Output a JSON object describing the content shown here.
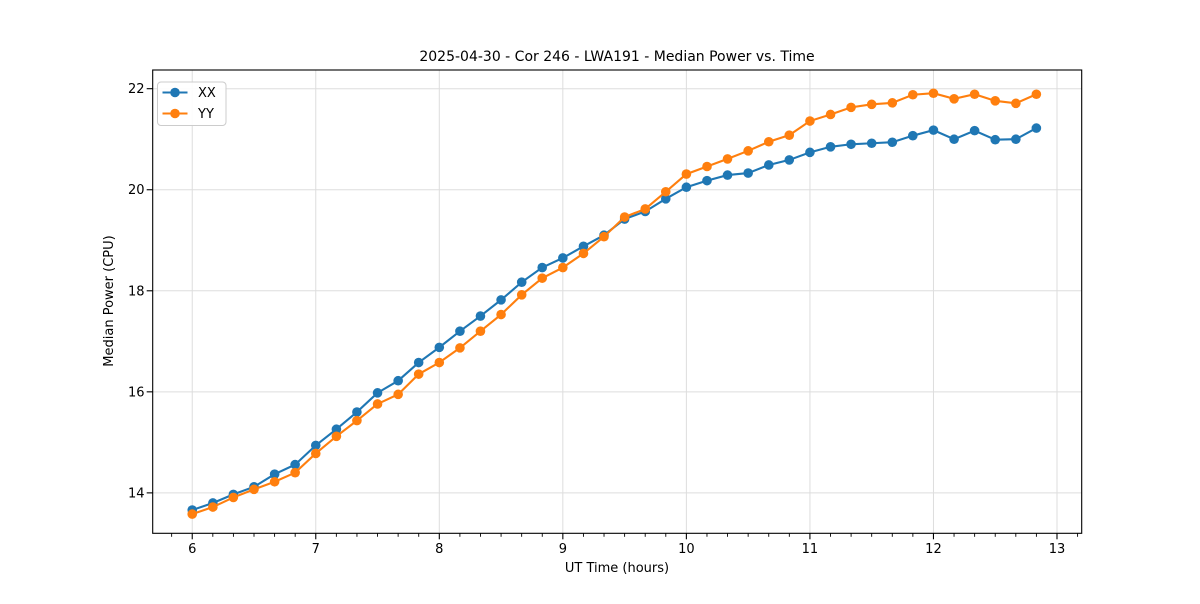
{
  "chart_data": {
    "type": "line",
    "title": "2025-04-30 - Cor 246 - LWA191 - Median Power vs. Time",
    "xlabel": "UT Time (hours)",
    "ylabel": "Median Power (CPU)",
    "xlim": [
      5.68,
      13.2
    ],
    "ylim": [
      13.2,
      22.37
    ],
    "x_ticks": [
      6,
      7,
      8,
      9,
      10,
      11,
      12,
      13
    ],
    "y_ticks": [
      14,
      16,
      18,
      20,
      22
    ],
    "x_minor_tick_step_hours": 0.16667,
    "grid": "major-both",
    "legend_position": "upper-left",
    "x": [
      6.0,
      6.167,
      6.333,
      6.5,
      6.667,
      6.833,
      7.0,
      7.167,
      7.333,
      7.5,
      7.667,
      7.833,
      8.0,
      8.167,
      8.333,
      8.5,
      8.667,
      8.833,
      9.0,
      9.167,
      9.333,
      9.5,
      9.667,
      9.833,
      10.0,
      10.167,
      10.333,
      10.5,
      10.667,
      10.833,
      11.0,
      11.167,
      11.333,
      11.5,
      11.667,
      11.833,
      12.0,
      12.167,
      12.333,
      12.5,
      12.667,
      12.833
    ],
    "series": [
      {
        "name": "XX",
        "color": "#1f77b4",
        "marker": "circle",
        "values": [
          13.66,
          13.8,
          13.97,
          14.12,
          14.37,
          14.56,
          14.94,
          15.26,
          15.6,
          15.98,
          16.22,
          16.58,
          16.88,
          17.2,
          17.5,
          17.82,
          18.17,
          18.46,
          18.65,
          18.88,
          19.1,
          19.42,
          19.57,
          19.82,
          20.05,
          20.18,
          20.29,
          20.33,
          20.49,
          20.59,
          20.74,
          20.85,
          20.9,
          20.92,
          20.94,
          21.07,
          21.18,
          21.0,
          21.17,
          20.99,
          21.0,
          21.22
        ]
      },
      {
        "name": "YY",
        "color": "#ff7f0e",
        "marker": "circle",
        "values": [
          13.58,
          13.72,
          13.91,
          14.07,
          14.22,
          14.4,
          14.78,
          15.12,
          15.43,
          15.76,
          15.95,
          16.35,
          16.58,
          16.87,
          17.2,
          17.53,
          17.92,
          18.25,
          18.46,
          18.74,
          19.07,
          19.46,
          19.62,
          19.96,
          20.31,
          20.46,
          20.61,
          20.77,
          20.95,
          21.08,
          21.36,
          21.49,
          21.63,
          21.69,
          21.72,
          21.88,
          21.91,
          21.8,
          21.89,
          21.76,
          21.71,
          21.89
        ]
      }
    ]
  },
  "style": {
    "background": "#ffffff",
    "grid_color": "#dddddd",
    "spine_color": "#000000",
    "tick_color": "#000000",
    "legend_border_color": "#cccccc",
    "legend_background": "#ffffff"
  }
}
